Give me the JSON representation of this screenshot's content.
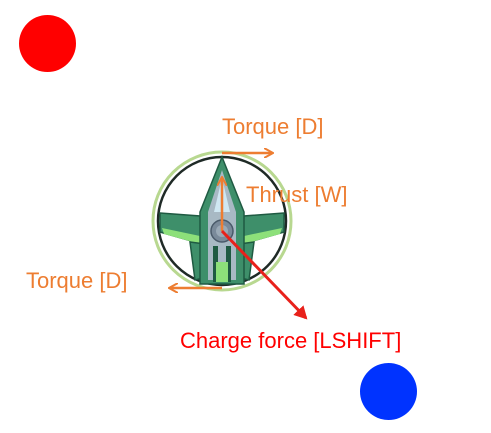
{
  "labels": {
    "torque_top": "Torque [D]",
    "thrust": "Thrust [W]",
    "torque_left": "Torque [D]",
    "charge": "Charge force [LSHIFT]"
  },
  "colors": {
    "orange": "#ED7D31",
    "red": "#FF0000",
    "blue": "#0033FF",
    "ship_green": "#3E8F6A",
    "ship_dark": "#1F5A42",
    "ship_light": "#8DE07A",
    "ship_grey": "#A8B9C4",
    "ring": "#B8D890",
    "arrow_red": "#E8211B"
  },
  "icons": {
    "red_ball": "red-ball",
    "blue_ball": "blue-ball",
    "player_ship": "spaceship-icon"
  }
}
